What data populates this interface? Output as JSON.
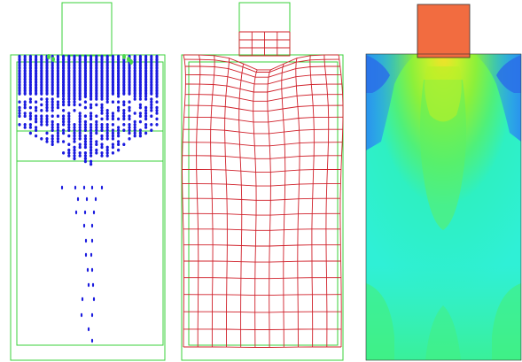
{
  "panels": [
    {
      "id": "particles",
      "description_hidden": true
    },
    {
      "id": "deformed-mesh",
      "description_hidden": true
    },
    {
      "id": "contour-field",
      "description_hidden": true
    }
  ],
  "colors": {
    "outline": "#39d13a",
    "particle": "#1a1adf",
    "particle_highlight": "#4bd84b",
    "mesh": "#d0202a",
    "punch": "#f26c40",
    "field_low": "#2b9cf0",
    "field_mid": "#2ff0d6",
    "field_high": "#a8f020"
  }
}
